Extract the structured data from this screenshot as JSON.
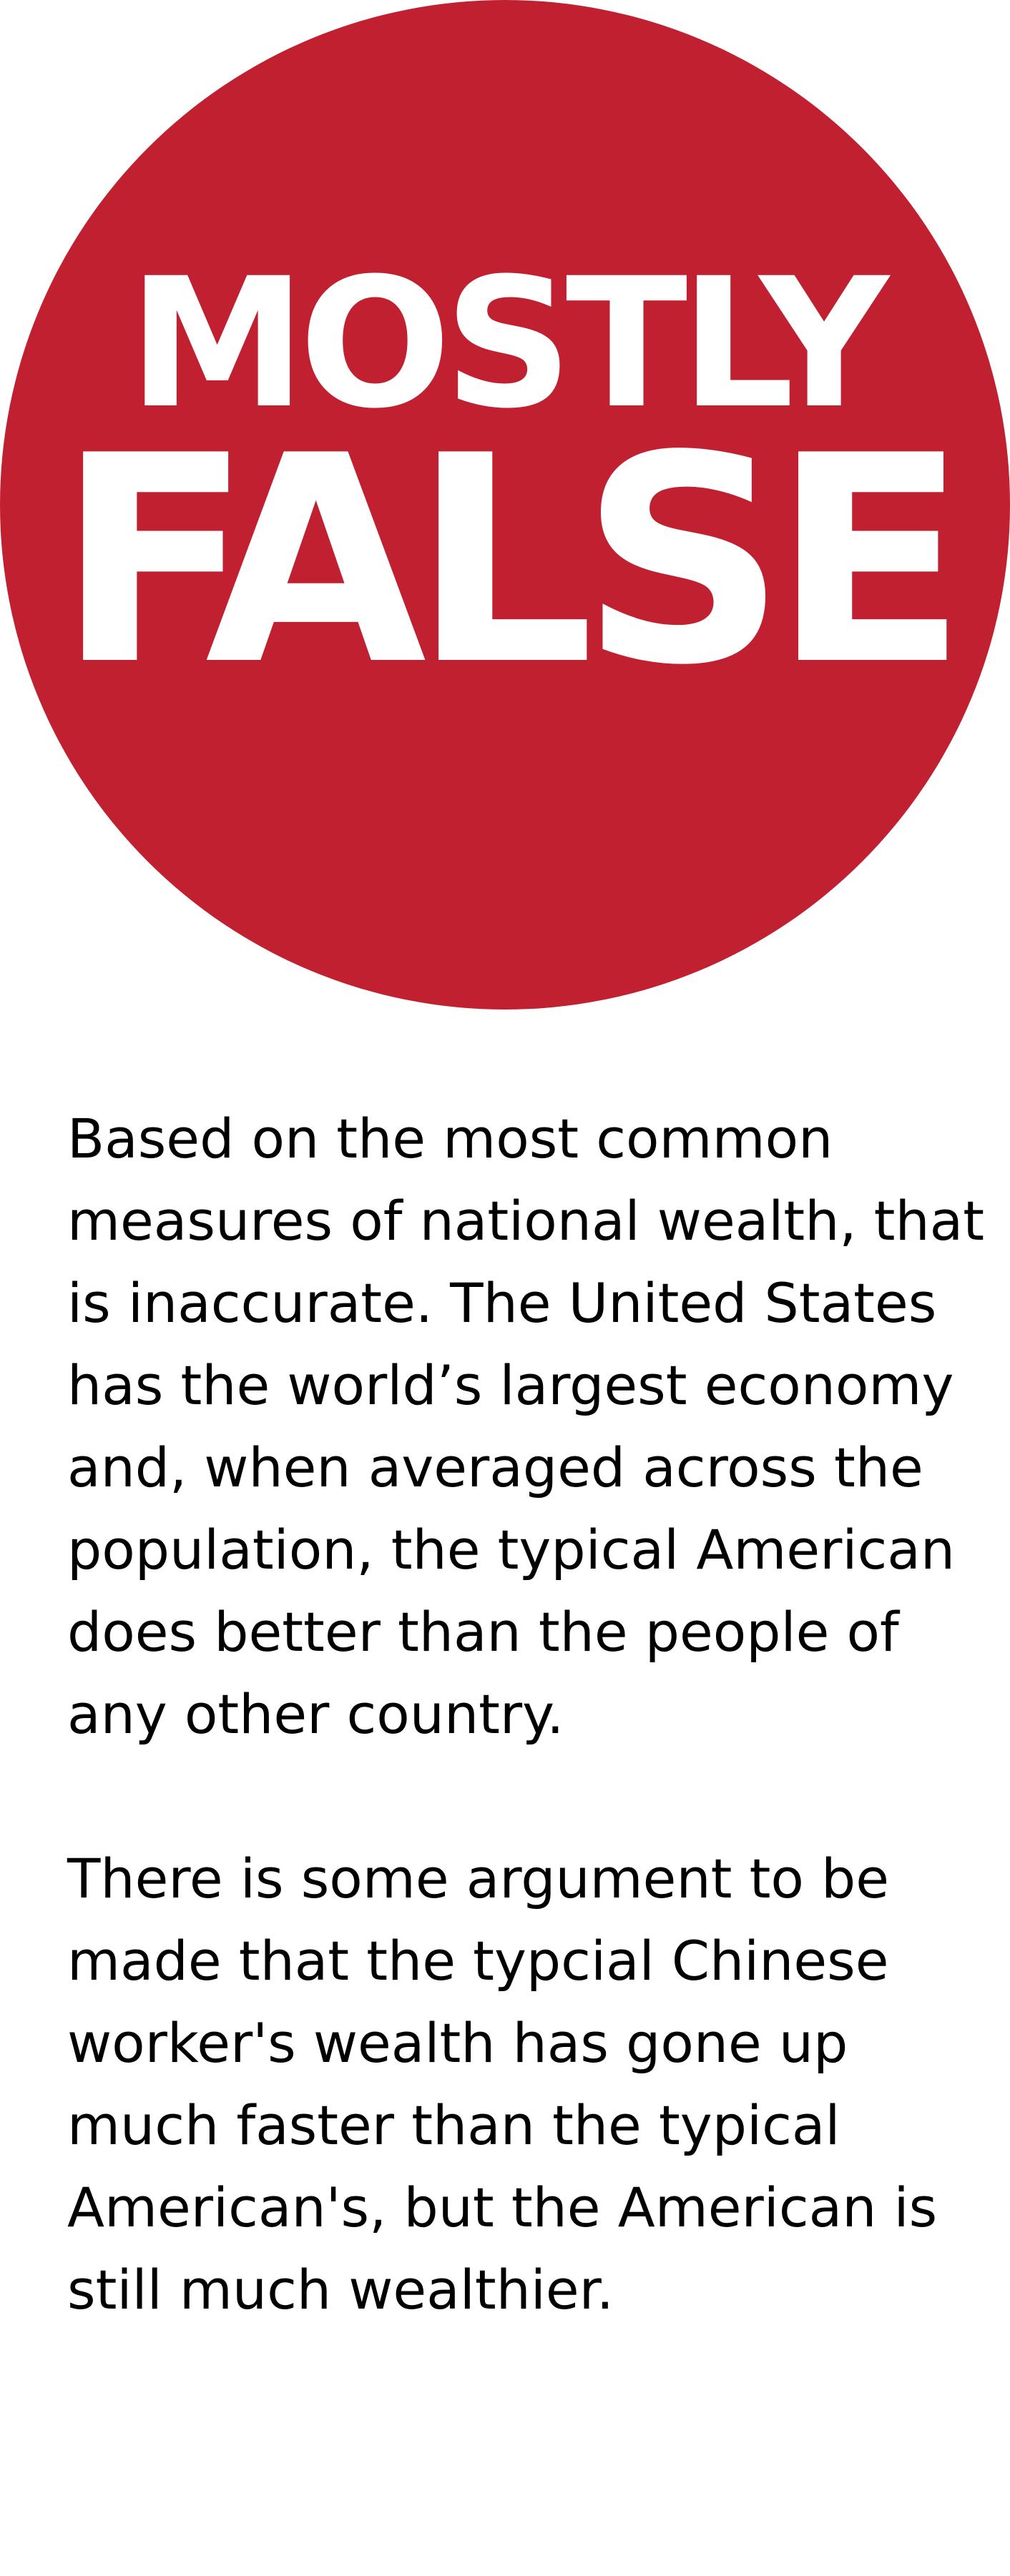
{
  "verdict": {
    "line1": "MOSTLY",
    "line2": "FALSE",
    "circle_color": "#c0202f",
    "text_color": "#ffffff"
  },
  "explanation": {
    "paragraph1": "Based on the most common measures of national wealth, that is inaccurate. The United States has the world’s largest economy and, when averaged across the population, the typical American does better than the people of any other country.",
    "paragraph2": "There is some argument to be made that the typcial Chinese worker's wealth has gone up much faster than the typical American's, but the American is still much wealthier."
  }
}
